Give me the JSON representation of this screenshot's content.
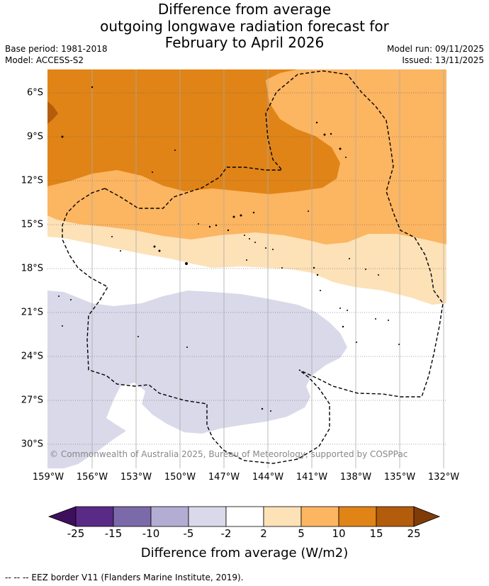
{
  "title": {
    "line1": "Difference from average",
    "line2": "outgoing longwave radiation forecast for",
    "line3": "February to April 2026"
  },
  "meta": {
    "base_period": "Base period: 1981-2018",
    "model": "Model: ACCESS-S2",
    "model_run": "Model run: 09/11/2025",
    "issued": "Issued: 13/11/2025"
  },
  "map": {
    "copyright": "© Commonwealth of Australia 2025, Bureau of Meteorology, supported by COSPPac",
    "lat_labels": [
      "6°S",
      "9°S",
      "12°S",
      "15°S",
      "18°S",
      "21°S",
      "24°S",
      "27°S",
      "30°S"
    ],
    "lon_labels": [
      "159°W",
      "156°W",
      "153°W",
      "150°W",
      "147°W",
      "144°W",
      "141°W",
      "138°W",
      "135°W",
      "132°W"
    ]
  },
  "colorbar": {
    "ticks": [
      "-25",
      "-15",
      "-10",
      "-5",
      "-2",
      "2",
      "5",
      "10",
      "15",
      "25"
    ],
    "title": "Difference from average (W/m2)",
    "colors": {
      "under": "#3f0f5e",
      "lt_-25": "#5a2a87",
      "neg_15_10": "#7b6aa9",
      "neg_10_5": "#b3add4",
      "neg_5_2": "#d9d9ea",
      "neutral": "#ffffff",
      "pos_2_5": "#fde1b7",
      "pos_5_10": "#fcb561",
      "pos_10_15": "#e08417",
      "pos_15_25": "#b35c0b",
      "over": "#7f3b08"
    }
  },
  "legend": {
    "eez": "-- -- -- EEZ border V11 (Flanders Marine Institute, 2019)."
  }
}
